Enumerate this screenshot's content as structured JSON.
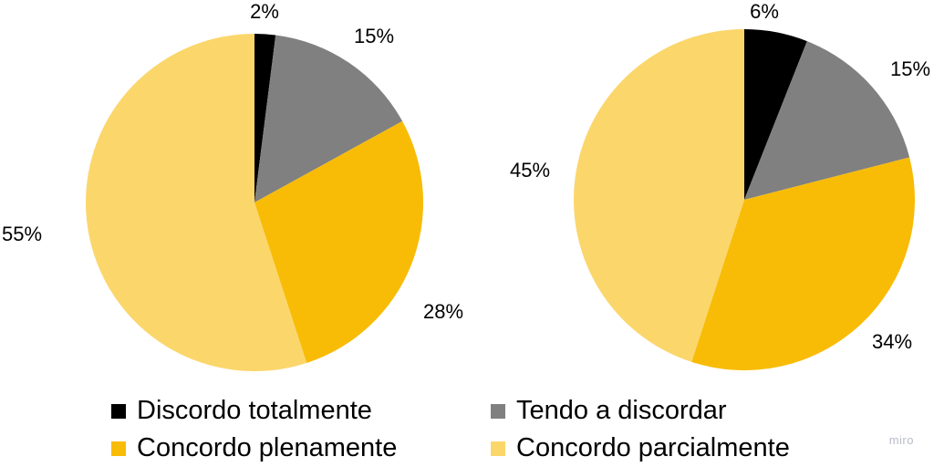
{
  "colors": {
    "discordo_totalmente": "#000000",
    "tendo_a_discordar": "#808080",
    "concordo_plenamente": "#F8BC07",
    "concordo_parcialmente": "#FBD66B"
  },
  "chart_data": [
    {
      "type": "pie",
      "categories": [
        "Discordo totalmente",
        "Tendo a discordar",
        "Concordo plenamente",
        "Concordo parcialmente"
      ],
      "values": [
        2,
        15,
        28,
        55
      ],
      "labels": [
        "2%",
        "15%",
        "28%",
        "55%"
      ],
      "start_angle": "top, clockwise"
    },
    {
      "type": "pie",
      "categories": [
        "Discordo totalmente",
        "Tendo a discordar",
        "Concordo plenamente",
        "Concordo parcialmente"
      ],
      "values": [
        6,
        15,
        34,
        45
      ],
      "labels": [
        "6%",
        "15%",
        "34%",
        "45%"
      ],
      "start_angle": "top, clockwise"
    }
  ],
  "legend": {
    "items": [
      {
        "label": "Discordo totalmente",
        "color": "#000000"
      },
      {
        "label": "Tendo a discordar",
        "color": "#808080"
      },
      {
        "label": "Concordo plenamente",
        "color": "#F8BC07"
      },
      {
        "label": "Concordo parcialmente",
        "color": "#FBD66B"
      }
    ]
  },
  "watermark": "miro"
}
